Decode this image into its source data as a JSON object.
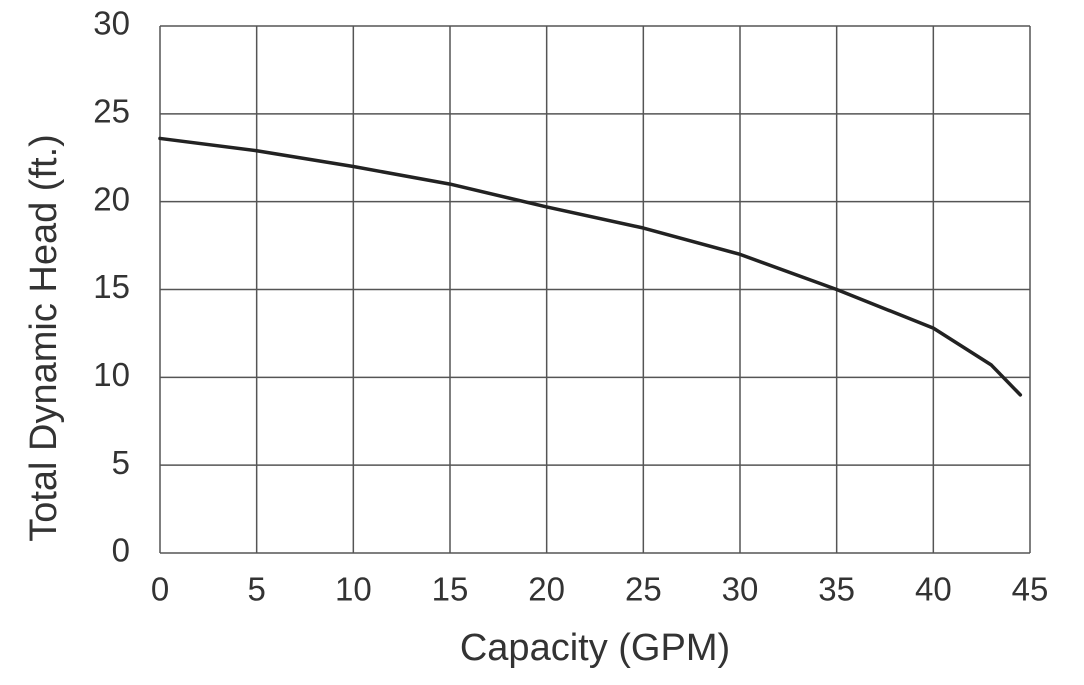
{
  "chart_data": {
    "type": "line",
    "x_label": "Capacity (GPM)",
    "y_label": "Total Dynamic Head (ft.)",
    "x": [
      0,
      5,
      10,
      15,
      20,
      25,
      30,
      35,
      40,
      43,
      44.5
    ],
    "series": [
      {
        "color": "#222222",
        "values": [
          23.6,
          22.9,
          22.0,
          21.0,
          19.7,
          18.5,
          17.0,
          15.0,
          12.8,
          10.7,
          9.0
        ]
      }
    ],
    "xlim": [
      0,
      45
    ],
    "xticks": [
      0,
      5,
      10,
      15,
      20,
      25,
      30,
      35,
      40,
      45
    ],
    "ylim": [
      0,
      30
    ],
    "yticks": [
      0,
      5,
      10,
      15,
      20,
      25,
      30
    ],
    "grid": true
  }
}
